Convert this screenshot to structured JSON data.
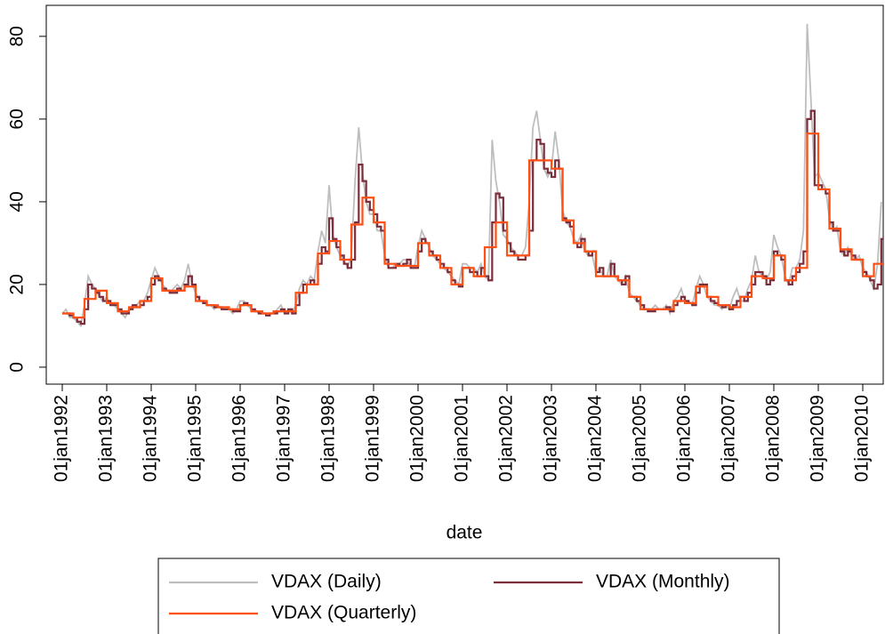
{
  "chart_data": {
    "type": "line",
    "x_title": "date",
    "x": [
      "1992-01",
      "1992-02",
      "1992-03",
      "1992-04",
      "1992-05",
      "1992-06",
      "1992-07",
      "1992-08",
      "1992-09",
      "1992-10",
      "1992-11",
      "1992-12",
      "1993-01",
      "1993-02",
      "1993-03",
      "1993-04",
      "1993-05",
      "1993-06",
      "1993-07",
      "1993-08",
      "1993-09",
      "1993-10",
      "1993-11",
      "1993-12",
      "1994-01",
      "1994-02",
      "1994-03",
      "1994-04",
      "1994-05",
      "1994-06",
      "1994-07",
      "1994-08",
      "1994-09",
      "1994-10",
      "1994-11",
      "1994-12",
      "1995-01",
      "1995-02",
      "1995-03",
      "1995-04",
      "1995-05",
      "1995-06",
      "1995-07",
      "1995-08",
      "1995-09",
      "1995-10",
      "1995-11",
      "1995-12",
      "1996-01",
      "1996-02",
      "1996-03",
      "1996-04",
      "1996-05",
      "1996-06",
      "1996-07",
      "1996-08",
      "1996-09",
      "1996-10",
      "1996-11",
      "1996-12",
      "1997-01",
      "1997-02",
      "1997-03",
      "1997-04",
      "1997-05",
      "1997-06",
      "1997-07",
      "1997-08",
      "1997-09",
      "1997-10",
      "1997-11",
      "1997-12",
      "1998-01",
      "1998-02",
      "1998-03",
      "1998-04",
      "1998-05",
      "1998-06",
      "1998-07",
      "1998-08",
      "1998-09",
      "1998-10",
      "1998-11",
      "1998-12",
      "1999-01",
      "1999-02",
      "1999-03",
      "1999-04",
      "1999-05",
      "1999-06",
      "1999-07",
      "1999-08",
      "1999-09",
      "1999-10",
      "1999-11",
      "1999-12",
      "2000-01",
      "2000-02",
      "2000-03",
      "2000-04",
      "2000-05",
      "2000-06",
      "2000-07",
      "2000-08",
      "2000-09",
      "2000-10",
      "2000-11",
      "2000-12",
      "2001-01",
      "2001-02",
      "2001-03",
      "2001-04",
      "2001-05",
      "2001-06",
      "2001-07",
      "2001-08",
      "2001-09",
      "2001-10",
      "2001-11",
      "2001-12",
      "2002-01",
      "2002-02",
      "2002-03",
      "2002-04",
      "2002-05",
      "2002-06",
      "2002-07",
      "2002-08",
      "2002-09",
      "2002-10",
      "2002-11",
      "2002-12",
      "2003-01",
      "2003-02",
      "2003-03",
      "2003-04",
      "2003-05",
      "2003-06",
      "2003-07",
      "2003-08",
      "2003-09",
      "2003-10",
      "2003-11",
      "2003-12",
      "2004-01",
      "2004-02",
      "2004-03",
      "2004-04",
      "2004-05",
      "2004-06",
      "2004-07",
      "2004-08",
      "2004-09",
      "2004-10",
      "2004-11",
      "2004-12",
      "2005-01",
      "2005-02",
      "2005-03",
      "2005-04",
      "2005-05",
      "2005-06",
      "2005-07",
      "2005-08",
      "2005-09",
      "2005-10",
      "2005-11",
      "2005-12",
      "2006-01",
      "2006-02",
      "2006-03",
      "2006-04",
      "2006-05",
      "2006-06",
      "2006-07",
      "2006-08",
      "2006-09",
      "2006-10",
      "2006-11",
      "2006-12",
      "2007-01",
      "2007-02",
      "2007-03",
      "2007-04",
      "2007-05",
      "2007-06",
      "2007-07",
      "2007-08",
      "2007-09",
      "2007-10",
      "2007-11",
      "2007-12",
      "2008-01",
      "2008-02",
      "2008-03",
      "2008-04",
      "2008-05",
      "2008-06",
      "2008-07",
      "2008-08",
      "2008-09",
      "2008-10",
      "2008-11",
      "2008-12",
      "2009-01",
      "2009-02",
      "2009-03",
      "2009-04",
      "2009-05",
      "2009-06",
      "2009-07",
      "2009-08",
      "2009-09",
      "2009-10",
      "2009-11",
      "2009-12",
      "2010-01",
      "2010-02",
      "2010-03",
      "2010-04",
      "2010-05",
      "2010-06"
    ],
    "series": [
      {
        "name": "VDAX (Daily)",
        "color": "#bebebe",
        "step": false,
        "values": [
          13,
          14,
          12,
          12,
          11,
          10,
          15,
          22,
          20,
          19,
          17,
          16,
          17,
          15,
          15,
          14,
          13,
          12,
          14,
          15,
          15,
          16,
          16,
          18,
          21,
          24,
          22,
          20,
          19,
          18,
          19,
          20,
          19,
          21,
          25,
          20,
          18,
          16,
          16,
          15,
          15,
          14,
          15,
          14,
          14,
          14,
          13,
          14,
          16,
          16,
          15,
          14,
          14,
          13,
          13,
          13,
          13,
          13,
          14,
          15,
          13,
          14,
          13,
          15,
          19,
          21,
          20,
          22,
          21,
          28,
          33,
          30,
          44,
          32,
          29,
          27,
          26,
          24,
          27,
          45,
          58,
          47,
          40,
          37,
          37,
          33,
          33,
          27,
          24,
          24,
          25,
          25,
          26,
          26,
          24,
          24,
          29,
          33,
          31,
          29,
          27,
          26,
          25,
          24,
          23,
          22,
          21,
          20,
          25,
          25,
          24,
          24,
          23,
          25,
          22,
          21,
          55,
          45,
          40,
          32,
          31,
          29,
          28,
          27,
          27,
          29,
          40,
          58,
          62,
          55,
          48,
          46,
          48,
          57,
          50,
          38,
          35,
          34,
          31,
          30,
          32,
          28,
          27,
          27,
          23,
          24,
          22,
          22,
          26,
          22,
          21,
          20,
          22,
          18,
          17,
          16,
          15,
          14,
          14,
          14,
          15,
          14,
          14,
          15,
          13,
          16,
          17,
          19,
          16,
          16,
          15,
          19,
          22,
          20,
          17,
          16,
          15,
          15,
          14,
          15,
          14,
          17,
          19,
          16,
          16,
          19,
          21,
          27,
          23,
          22,
          21,
          23,
          32,
          29,
          27,
          22,
          20,
          24,
          24,
          26,
          33,
          83,
          65,
          46,
          47,
          45,
          43,
          36,
          33,
          34,
          28,
          27,
          29,
          27,
          26,
          27,
          24,
          23,
          21,
          19,
          25,
          40
        ]
      },
      {
        "name": "VDAX (Monthly)",
        "color": "#7b2d3a",
        "step": true,
        "values": [
          13,
          13,
          12.5,
          12,
          11,
          10.5,
          14,
          20,
          19,
          18,
          17,
          16,
          16,
          15,
          15,
          14,
          13,
          13,
          14,
          15,
          14.5,
          15,
          16,
          17,
          20,
          22,
          21,
          19,
          18.5,
          18,
          18,
          19,
          18.5,
          20,
          22,
          20,
          17,
          16,
          15.5,
          15,
          15,
          14.5,
          14.5,
          14,
          14,
          14,
          13.5,
          13.5,
          15,
          15.5,
          15,
          14,
          13.5,
          13,
          13,
          12.5,
          13,
          13,
          13.5,
          14,
          13,
          14,
          13,
          15,
          18,
          20,
          20,
          21,
          20,
          25,
          29,
          28,
          36,
          31,
          29,
          27,
          25,
          24,
          26,
          35,
          49,
          45,
          40,
          38,
          37,
          34,
          33,
          26,
          24,
          24,
          25,
          24.5,
          25,
          26,
          24,
          24,
          28,
          31,
          30,
          28,
          27,
          26,
          25,
          24,
          23,
          21,
          20,
          19.5,
          24,
          24,
          23,
          23,
          22,
          24,
          22,
          21,
          35,
          42,
          41,
          33,
          30,
          28,
          27,
          26,
          26,
          27,
          33,
          50,
          55,
          54,
          48,
          47,
          46,
          50,
          48,
          36,
          35,
          34,
          30,
          29,
          31,
          28,
          27,
          28,
          23,
          24,
          22,
          22,
          25,
          22,
          21,
          20,
          22,
          17,
          17,
          16,
          15,
          14,
          13.5,
          13.5,
          14,
          14,
          14,
          14.5,
          13.5,
          15,
          16,
          17,
          16,
          15.5,
          15,
          18,
          20,
          20,
          17,
          16,
          15.5,
          15,
          14.5,
          15,
          14,
          15,
          16,
          17,
          16,
          18,
          20,
          23,
          23,
          22,
          20,
          21,
          28,
          27,
          26,
          21,
          20,
          22,
          23,
          25,
          28,
          60,
          62,
          44,
          44,
          43,
          42,
          35,
          33,
          33,
          28,
          27,
          28,
          27,
          26,
          26,
          23,
          22,
          21,
          19,
          20,
          31
        ]
      },
      {
        "name": "VDAX (Quarterly)",
        "color": "#ff4f12",
        "step": true,
        "x": [
          "1992-01",
          "1992-04",
          "1992-07",
          "1992-10",
          "1993-01",
          "1993-04",
          "1993-07",
          "1993-10",
          "1994-01",
          "1994-04",
          "1994-07",
          "1994-10",
          "1995-01",
          "1995-04",
          "1995-07",
          "1995-10",
          "1996-01",
          "1996-04",
          "1996-07",
          "1996-10",
          "1997-01",
          "1997-04",
          "1997-07",
          "1997-10",
          "1998-01",
          "1998-04",
          "1998-07",
          "1998-10",
          "1999-01",
          "1999-04",
          "1999-07",
          "1999-10",
          "2000-01",
          "2000-04",
          "2000-07",
          "2000-10",
          "2001-01",
          "2001-04",
          "2001-07",
          "2001-10",
          "2002-01",
          "2002-04",
          "2002-07",
          "2002-10",
          "2003-01",
          "2003-04",
          "2003-07",
          "2003-10",
          "2004-01",
          "2004-04",
          "2004-07",
          "2004-10",
          "2005-01",
          "2005-04",
          "2005-07",
          "2005-10",
          "2006-01",
          "2006-04",
          "2006-07",
          "2006-10",
          "2007-01",
          "2007-04",
          "2007-07",
          "2007-10",
          "2008-01",
          "2008-04",
          "2008-07",
          "2008-10",
          "2009-01",
          "2009-04",
          "2009-07",
          "2009-10",
          "2010-01",
          "2010-04"
        ],
        "values": [
          13,
          12,
          16.5,
          18.5,
          15.5,
          13.5,
          14.5,
          16,
          21.5,
          18.5,
          18.5,
          19.5,
          16,
          15,
          14.5,
          14,
          15,
          13.5,
          13,
          13.5,
          13.5,
          18,
          20,
          27.5,
          30.5,
          26,
          34.5,
          41,
          35,
          25,
          24.5,
          24.5,
          30,
          27,
          24,
          20,
          24,
          22,
          29,
          35,
          27,
          27,
          50,
          50,
          48,
          35.5,
          30,
          28,
          22,
          22,
          21,
          17,
          14,
          14,
          14,
          16,
          15.5,
          19.5,
          17,
          15,
          14.5,
          17,
          22,
          21.5,
          27,
          21,
          24,
          56.5,
          43,
          33.5,
          28.5,
          26,
          22,
          25
        ]
      }
    ],
    "xlim": [
      1991.64,
      2010.46
    ],
    "xticks": [
      {
        "value": 1992,
        "label": "01jan1992"
      },
      {
        "value": 1993,
        "label": "01jan1993"
      },
      {
        "value": 1994,
        "label": "01jan1994"
      },
      {
        "value": 1995,
        "label": "01jan1995"
      },
      {
        "value": 1996,
        "label": "01jan1996"
      },
      {
        "value": 1997,
        "label": "01jan1997"
      },
      {
        "value": 1998,
        "label": "01jan1998"
      },
      {
        "value": 1999,
        "label": "01jan1999"
      },
      {
        "value": 2000,
        "label": "01jan2000"
      },
      {
        "value": 2001,
        "label": "01jan2001"
      },
      {
        "value": 2002,
        "label": "01jan2002"
      },
      {
        "value": 2003,
        "label": "01jan2003"
      },
      {
        "value": 2004,
        "label": "01jan2004"
      },
      {
        "value": 2005,
        "label": "01jan2005"
      },
      {
        "value": 2006,
        "label": "01jan2006"
      },
      {
        "value": 2007,
        "label": "01jan2007"
      },
      {
        "value": 2008,
        "label": "01jan2008"
      },
      {
        "value": 2009,
        "label": "01jan2009"
      },
      {
        "value": 2010,
        "label": "01jan2010"
      }
    ],
    "ylim": [
      -4.1,
      87.5
    ],
    "yticks": [
      0,
      20,
      40,
      60,
      80
    ],
    "grid": false,
    "legend": "bottom"
  }
}
